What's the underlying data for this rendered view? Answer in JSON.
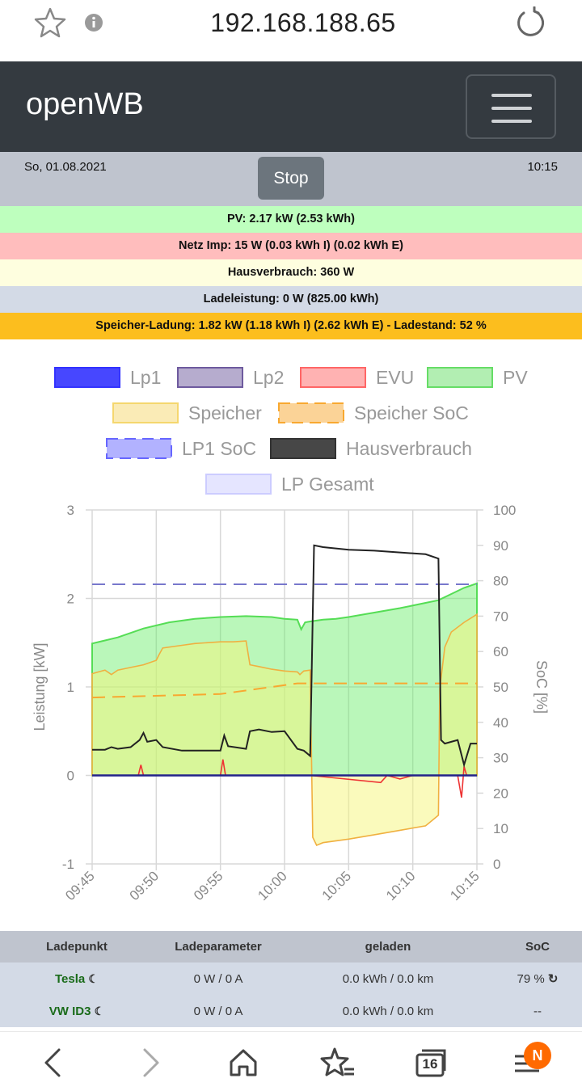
{
  "browser": {
    "url": "192.168.188.65",
    "tab_count": "16",
    "menu_badge": "N"
  },
  "header": {
    "brand": "openWB"
  },
  "status_bar": {
    "date": "So, 01.08.2021",
    "time": "10:15",
    "stop_label": "Stop"
  },
  "info_rows": {
    "pv": "PV: 2.17 kW (2.53 kWh)",
    "grid": "Netz Imp: 15 W (0.03 kWh I) (0.02 kWh E)",
    "house": "Hausverbrauch: 360 W",
    "charge": "Ladeleistung: 0 W (825.00 kWh)",
    "storage": "Speicher-Ladung: 1.82 kW (1.18 kWh I) (2.62 kWh E)  - Ladestand: 52 %"
  },
  "colors": {
    "pv_row": "#beffbe",
    "grid_row": "#ffbdbd",
    "house_row": "#fefedf",
    "charge_row": "#d3dae6",
    "storage_row": "#fcbe1e",
    "navbar": "#343a40",
    "lp_name": "#1a6b1a",
    "badge": "#ff6a00"
  },
  "chart_data": {
    "type": "area",
    "legend": [
      {
        "label": "Lp1",
        "color": "#3333ff",
        "dashed": false
      },
      {
        "label": "Lp2",
        "color": "#6e5a9e",
        "dashed": false
      },
      {
        "label": "EVU",
        "color": "#ff6666",
        "dashed": false
      },
      {
        "label": "PV",
        "color": "#66dd66",
        "dashed": false
      },
      {
        "label": "Speicher",
        "color": "#f5d76e",
        "dashed": false
      },
      {
        "label": "Speicher SoC",
        "color": "#f8a830",
        "dashed": true
      },
      {
        "label": "LP1 SoC",
        "color": "#6666ff",
        "dashed": true
      },
      {
        "label": "Hausverbrauch",
        "color": "#333333",
        "dashed": false
      },
      {
        "label": "LP Gesamt",
        "color": "#ccccff",
        "dashed": false
      }
    ],
    "xlabel": "",
    "ylabel_left": "Leistung [kW]",
    "ylabel_right": "SoC [%]",
    "ylim_left": [
      -1,
      3
    ],
    "ylim_right": [
      0,
      100
    ],
    "y_ticks_left": [
      "3",
      "2",
      "1",
      "0",
      "-1"
    ],
    "y_ticks_right": [
      "100",
      "90",
      "80",
      "70",
      "60",
      "50",
      "40",
      "30",
      "20",
      "10",
      "0"
    ],
    "x_ticks": [
      "09:45",
      "09:50",
      "09:55",
      "10:00",
      "10:05",
      "10:10",
      "10:15"
    ],
    "x_range_minutes": [
      0,
      30
    ],
    "x_unit": "minutes after 09:45",
    "grid": true,
    "series": [
      {
        "name": "PV",
        "axis": "left",
        "points": [
          [
            0,
            1.49
          ],
          [
            2,
            1.56
          ],
          [
            4,
            1.66
          ],
          [
            6,
            1.73
          ],
          [
            8,
            1.77
          ],
          [
            10,
            1.79
          ],
          [
            12,
            1.8
          ],
          [
            14,
            1.79
          ],
          [
            15,
            1.77
          ],
          [
            16,
            1.76
          ],
          [
            16.3,
            1.65
          ],
          [
            16.6,
            1.73
          ],
          [
            17,
            1.74
          ],
          [
            18,
            1.76
          ],
          [
            19,
            1.77
          ],
          [
            20,
            1.79
          ],
          [
            22,
            1.84
          ],
          [
            24,
            1.89
          ],
          [
            26,
            1.95
          ],
          [
            27,
            1.98
          ],
          [
            28,
            2.05
          ],
          [
            29,
            2.12
          ],
          [
            30,
            2.17
          ]
        ]
      },
      {
        "name": "Speicher",
        "axis": "left",
        "points": [
          [
            0,
            1.15
          ],
          [
            1,
            1.19
          ],
          [
            1.5,
            1.14
          ],
          [
            2,
            1.19
          ],
          [
            3,
            1.22
          ],
          [
            4,
            1.25
          ],
          [
            5,
            1.3
          ],
          [
            5.2,
            1.36
          ],
          [
            5.5,
            1.44
          ],
          [
            7,
            1.47
          ],
          [
            8,
            1.49
          ],
          [
            10,
            1.51
          ],
          [
            11,
            1.51
          ],
          [
            12,
            1.52
          ],
          [
            12.3,
            1.25
          ],
          [
            13,
            1.23
          ],
          [
            14,
            1.2
          ],
          [
            15,
            1.18
          ],
          [
            16,
            1.17
          ],
          [
            16.2,
            1.14
          ],
          [
            16.5,
            1.18
          ],
          [
            17,
            1.19
          ],
          [
            17.2,
            -0.7
          ],
          [
            17.5,
            -0.79
          ],
          [
            18,
            -0.76
          ],
          [
            20,
            -0.72
          ],
          [
            22,
            -0.67
          ],
          [
            24,
            -0.62
          ],
          [
            26,
            -0.57
          ],
          [
            27,
            -0.45
          ],
          [
            27.1,
            0.98
          ],
          [
            27.5,
            1.45
          ],
          [
            28,
            1.62
          ],
          [
            29,
            1.73
          ],
          [
            30,
            1.82
          ]
        ]
      },
      {
        "name": "Hausverbrauch",
        "axis": "left",
        "points": [
          [
            0,
            0.29
          ],
          [
            1,
            0.29
          ],
          [
            1.5,
            0.32
          ],
          [
            2,
            0.3
          ],
          [
            3,
            0.32
          ],
          [
            3.7,
            0.4
          ],
          [
            4,
            0.48
          ],
          [
            4.3,
            0.38
          ],
          [
            5,
            0.4
          ],
          [
            5.5,
            0.32
          ],
          [
            7,
            0.28
          ],
          [
            9,
            0.28
          ],
          [
            10,
            0.28
          ],
          [
            10.3,
            0.45
          ],
          [
            10.6,
            0.33
          ],
          [
            12,
            0.3
          ],
          [
            12.3,
            0.5
          ],
          [
            13,
            0.52
          ],
          [
            14,
            0.49
          ],
          [
            15,
            0.5
          ],
          [
            16,
            0.3
          ],
          [
            16.5,
            0.28
          ],
          [
            17,
            0.22
          ],
          [
            17.3,
            2.6
          ],
          [
            18,
            2.58
          ],
          [
            20,
            2.55
          ],
          [
            22,
            2.54
          ],
          [
            24,
            2.52
          ],
          [
            26,
            2.5
          ],
          [
            27,
            2.45
          ],
          [
            27.2,
            0.4
          ],
          [
            27.5,
            0.36
          ],
          [
            28,
            0.38
          ],
          [
            28.5,
            0.4
          ],
          [
            29,
            0.12
          ],
          [
            29.5,
            0.36
          ],
          [
            30,
            0.36
          ]
        ]
      },
      {
        "name": "EVU",
        "axis": "left",
        "points": [
          [
            0,
            0
          ],
          [
            3.6,
            0
          ],
          [
            3.8,
            0.12
          ],
          [
            4,
            0
          ],
          [
            10,
            0
          ],
          [
            10.2,
            0.18
          ],
          [
            10.4,
            0
          ],
          [
            17,
            0
          ],
          [
            22.5,
            -0.08
          ],
          [
            23,
            0
          ],
          [
            24,
            -0.04
          ],
          [
            25,
            0
          ],
          [
            28.5,
            0
          ],
          [
            28.8,
            -0.25
          ],
          [
            29,
            0.1
          ],
          [
            29.2,
            0
          ],
          [
            30,
            0
          ]
        ]
      },
      {
        "name": "Lp1",
        "axis": "left",
        "points": [
          [
            0,
            0
          ],
          [
            30,
            0
          ]
        ]
      },
      {
        "name": "Speicher SoC",
        "axis": "right",
        "points": [
          [
            0,
            47
          ],
          [
            10,
            48
          ],
          [
            16,
            51
          ],
          [
            18,
            51
          ],
          [
            30,
            51
          ]
        ]
      },
      {
        "name": "LP1 SoC",
        "axis": "right",
        "points": [
          [
            0,
            79
          ],
          [
            30,
            79
          ]
        ]
      }
    ]
  },
  "table": {
    "headers": [
      "Ladepunkt",
      "Ladeparameter",
      "geladen",
      "SoC"
    ],
    "rows": [
      {
        "name": "Tesla",
        "params": "0 W / 0 A",
        "charged": "0.0 kWh / 0.0 km",
        "soc": "79 %"
      },
      {
        "name": "VW ID3",
        "params": "0 W / 0 A",
        "charged": "0.0 kWh / 0.0 km",
        "soc": "--"
      }
    ]
  },
  "icons": {
    "favorite": "star-icon",
    "info": "info-icon",
    "reload": "reload-icon",
    "back": "back-icon",
    "forward": "forward-icon",
    "home": "home-icon",
    "bookmarks": "bookmark-star-icon",
    "tabs": "tabs-icon",
    "menu": "menu-icon"
  }
}
